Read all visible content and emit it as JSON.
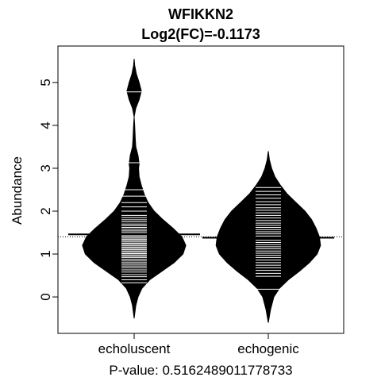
{
  "chart_data": {
    "type": "beanplot",
    "title": "WFIKKN2",
    "subtitle": "Log2(FC)=-0.1173",
    "ylabel": "Abundance",
    "xlabel": "P-value: 0.516248901177873​3",
    "ylim": [
      -0.85,
      5.85
    ],
    "yticks": [
      0,
      1,
      2,
      3,
      4,
      5
    ],
    "overall_mean": 1.4,
    "groups": [
      {
        "name": "echoluscent",
        "mean": 1.46,
        "min": -0.5,
        "max": 5.55,
        "density": [
          [
            -0.5,
            0.0
          ],
          [
            -0.2,
            0.03
          ],
          [
            0.0,
            0.07
          ],
          [
            0.2,
            0.14
          ],
          [
            0.4,
            0.28
          ],
          [
            0.6,
            0.5
          ],
          [
            0.8,
            0.72
          ],
          [
            1.0,
            0.88
          ],
          [
            1.2,
            0.93
          ],
          [
            1.4,
            0.86
          ],
          [
            1.6,
            0.7
          ],
          [
            1.8,
            0.52
          ],
          [
            2.0,
            0.36
          ],
          [
            2.2,
            0.25
          ],
          [
            2.4,
            0.18
          ],
          [
            2.6,
            0.13
          ],
          [
            2.8,
            0.09
          ],
          [
            3.0,
            0.08
          ],
          [
            3.1,
            0.09
          ],
          [
            3.3,
            0.07
          ],
          [
            3.5,
            0.03
          ],
          [
            3.7,
            0.02
          ],
          [
            4.0,
            0.01
          ],
          [
            4.2,
            0.0
          ],
          [
            4.4,
            0.03
          ],
          [
            4.6,
            0.09
          ],
          [
            4.8,
            0.13
          ],
          [
            5.0,
            0.09
          ],
          [
            5.2,
            0.04
          ],
          [
            5.4,
            0.01
          ],
          [
            5.55,
            0.0
          ]
        ],
        "points": [
          0.33,
          0.4,
          0.47,
          0.52,
          0.58,
          0.63,
          0.68,
          0.72,
          0.76,
          0.8,
          0.84,
          0.88,
          0.92,
          0.95,
          0.98,
          1.01,
          1.04,
          1.07,
          1.1,
          1.13,
          1.16,
          1.19,
          1.22,
          1.25,
          1.28,
          1.31,
          1.34,
          1.37,
          1.4,
          1.43,
          1.46,
          1.5,
          1.54,
          1.58,
          1.62,
          1.66,
          1.7,
          1.75,
          1.8,
          1.85,
          1.9,
          2.0,
          2.1,
          2.2,
          2.35,
          2.5,
          3.13,
          4.78
        ],
        "wide_points": [
          3.13,
          4.78
        ]
      },
      {
        "name": "echogenic",
        "mean": 1.38,
        "min": -0.6,
        "max": 3.4,
        "density": [
          [
            -0.6,
            0.0
          ],
          [
            -0.3,
            0.04
          ],
          [
            0.0,
            0.1
          ],
          [
            0.2,
            0.2
          ],
          [
            0.4,
            0.36
          ],
          [
            0.6,
            0.56
          ],
          [
            0.8,
            0.74
          ],
          [
            1.0,
            0.88
          ],
          [
            1.2,
            0.94
          ],
          [
            1.4,
            0.92
          ],
          [
            1.6,
            0.86
          ],
          [
            1.8,
            0.78
          ],
          [
            2.0,
            0.66
          ],
          [
            2.2,
            0.5
          ],
          [
            2.4,
            0.34
          ],
          [
            2.6,
            0.22
          ],
          [
            2.8,
            0.12
          ],
          [
            3.0,
            0.06
          ],
          [
            3.2,
            0.02
          ],
          [
            3.4,
            0.0
          ]
        ],
        "points": [
          0.18,
          0.48,
          0.55,
          0.62,
          0.68,
          0.74,
          0.8,
          0.86,
          0.92,
          0.97,
          1.02,
          1.07,
          1.12,
          1.17,
          1.22,
          1.27,
          1.32,
          1.37,
          1.42,
          1.47,
          1.52,
          1.57,
          1.62,
          1.67,
          1.72,
          1.78,
          1.84,
          1.9,
          1.96,
          2.02,
          2.08,
          2.15,
          2.22,
          2.3,
          2.38,
          2.46,
          2.55
        ],
        "wide_points": []
      }
    ]
  }
}
